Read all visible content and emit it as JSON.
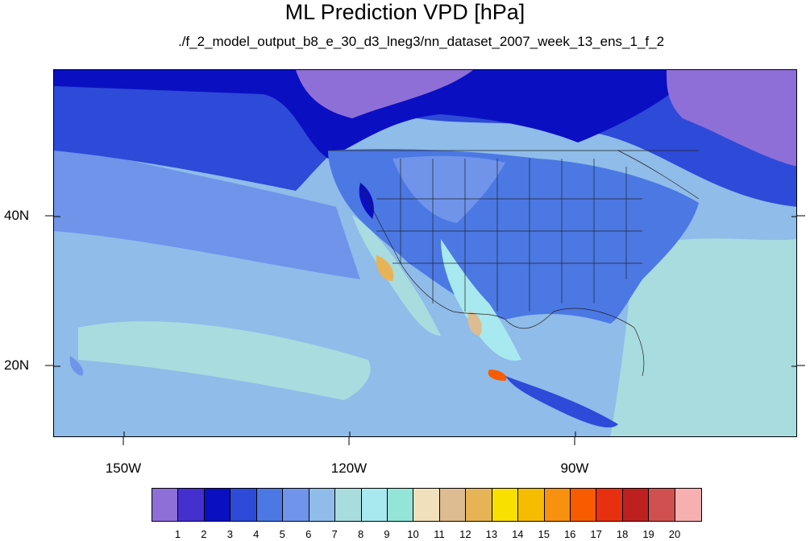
{
  "title": "ML Prediction VPD [hPa]",
  "subtitle": "./f_2_model_output_b8_e_30_d3_lneg3/nn_dataset_2007_week_13_ens_1_f_2",
  "lat_ticks": [
    {
      "label": "40N",
      "lat": 40
    },
    {
      "label": "20N",
      "lat": 20
    }
  ],
  "lon_ticks": [
    {
      "label": "150W",
      "lon": -150
    },
    {
      "label": "120W",
      "lon": -120
    },
    {
      "label": "90W",
      "lon": -90
    }
  ],
  "colorbar": {
    "labels": [
      "1",
      "2",
      "3",
      "4",
      "5",
      "6",
      "7",
      "8",
      "9",
      "10",
      "11",
      "12",
      "13",
      "14",
      "15",
      "16",
      "17",
      "18",
      "19",
      "20"
    ],
    "colors": [
      "#8e6fd8",
      "#4330cf",
      "#0a10c2",
      "#2e4ad8",
      "#4c78e4",
      "#6f94ea",
      "#8fbce9",
      "#a8dcdf",
      "#a8e8ef",
      "#94e4d8",
      "#f0e0bc",
      "#dcbc90",
      "#e6b456",
      "#fae000",
      "#f6bc00",
      "#f89010",
      "#f85c00",
      "#e63010",
      "#be2020",
      "#d05050",
      "#f6b0b0"
    ]
  },
  "colors": {
    "ocean_far": "#a8dcdf",
    "ocean_mid": "#8fbce9",
    "ocean_near": "#6f94ea",
    "north_band": "#2e4ad8",
    "north_deep": "#0a10c2",
    "north_purple": "#8e6fd8",
    "land_base": "#4c78e4"
  }
}
